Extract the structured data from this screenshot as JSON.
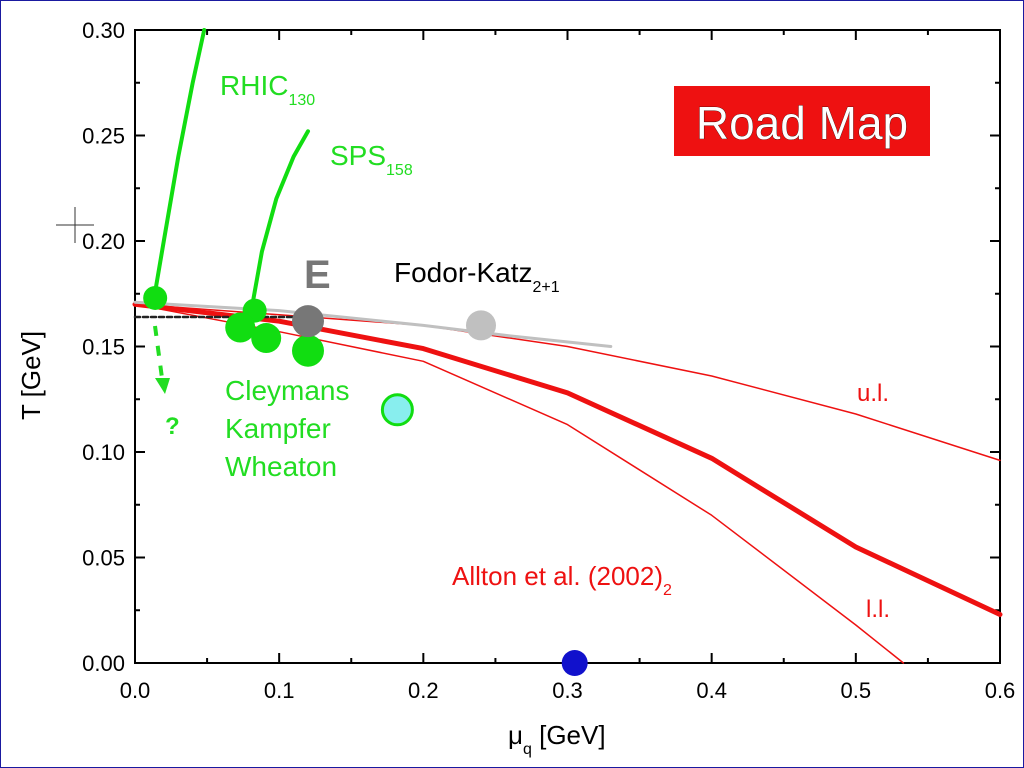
{
  "chart_data": {
    "type": "line",
    "xlabel": "μ",
    "xlabel_sub": "q",
    "xlabel_unit": " [GeV]",
    "ylabel": "T [GeV]",
    "xlim": [
      0.0,
      0.6
    ],
    "ylim": [
      0.0,
      0.3
    ],
    "x_ticks": [
      "0.0",
      "0.1",
      "0.2",
      "0.3",
      "0.4",
      "0.5",
      "0.6"
    ],
    "y_ticks": [
      "0.00",
      "0.05",
      "0.10",
      "0.15",
      "0.20",
      "0.25",
      "0.30"
    ],
    "x_tick_values": [
      0.0,
      0.1,
      0.2,
      0.3,
      0.4,
      0.5,
      0.6
    ],
    "y_tick_values": [
      0.0,
      0.05,
      0.1,
      0.15,
      0.2,
      0.25,
      0.3
    ],
    "title_box": {
      "text": "Road Map",
      "color": "#ee1111"
    },
    "colors": {
      "allton": "#ee1111",
      "freezeout": "#11dd11",
      "fodor_katz": "#c0c0c0",
      "endpoint": "#777777",
      "cyan_point": "#88eeee",
      "blue_point": "#1111cc",
      "dashed": "#222222"
    },
    "series": [
      {
        "role": "allton-central",
        "x": [
          0.0,
          0.1,
          0.2,
          0.3,
          0.4,
          0.5,
          0.6
        ],
        "y": [
          0.17,
          0.162,
          0.149,
          0.128,
          0.097,
          0.055,
          0.023
        ]
      },
      {
        "role": "allton-upper",
        "x": [
          0.0,
          0.1,
          0.2,
          0.3,
          0.4,
          0.5,
          0.6
        ],
        "y": [
          0.17,
          0.165,
          0.16,
          0.15,
          0.136,
          0.118,
          0.096
        ]
      },
      {
        "role": "allton-lower",
        "x": [
          0.0,
          0.1,
          0.2,
          0.3,
          0.4,
          0.5,
          0.533
        ],
        "y": [
          0.17,
          0.157,
          0.143,
          0.113,
          0.07,
          0.018,
          0.0
        ]
      },
      {
        "role": "fodor-katz-line",
        "x": [
          0.0,
          0.1,
          0.2,
          0.26,
          0.33
        ],
        "y": [
          0.171,
          0.167,
          0.16,
          0.155,
          0.15
        ]
      },
      {
        "role": "dashed-crossover",
        "x": [
          0.0,
          0.12
        ],
        "y": [
          0.164,
          0.164
        ]
      },
      {
        "role": "rhic-track",
        "x": [
          0.014,
          0.02,
          0.03,
          0.04,
          0.048
        ],
        "y": [
          0.176,
          0.2,
          0.24,
          0.275,
          0.3
        ]
      },
      {
        "role": "sps-track",
        "x": [
          0.082,
          0.088,
          0.098,
          0.11,
          0.12
        ],
        "y": [
          0.172,
          0.195,
          0.22,
          0.24,
          0.252
        ]
      }
    ],
    "points": [
      {
        "role": "freezeout",
        "x": 0.014,
        "y": 0.173,
        "r": 12
      },
      {
        "role": "freezeout",
        "x": 0.083,
        "y": 0.167,
        "r": 12
      },
      {
        "role": "freezeout",
        "x": 0.073,
        "y": 0.159,
        "r": 15
      },
      {
        "role": "freezeout",
        "x": 0.091,
        "y": 0.154,
        "r": 15
      },
      {
        "role": "freezeout",
        "x": 0.12,
        "y": 0.148,
        "r": 16
      },
      {
        "role": "endpoint",
        "x": 0.12,
        "y": 0.162,
        "r": 16
      },
      {
        "role": "fodor-katz-point",
        "x": 0.24,
        "y": 0.16,
        "r": 15
      },
      {
        "role": "cyan-point",
        "x": 0.182,
        "y": 0.12,
        "r": 16
      },
      {
        "role": "blue-point",
        "x": 0.305,
        "y": 0.0,
        "r": 13
      }
    ],
    "annotations": {
      "rhic": {
        "main": "RHIC",
        "sub": "130"
      },
      "sps": {
        "main": "SPS",
        "sub": "158"
      },
      "fodor": {
        "main": "Fodor-Katz",
        "sub": "2+1"
      },
      "endpoint_label": "E",
      "cleymans": [
        "Cleymans",
        "Kampfer",
        "Wheaton"
      ],
      "question": "?",
      "ul": "u.l.",
      "ll": "l.l.",
      "allton": {
        "main": "Allton et al. (2002)",
        "sub": "2"
      }
    }
  }
}
